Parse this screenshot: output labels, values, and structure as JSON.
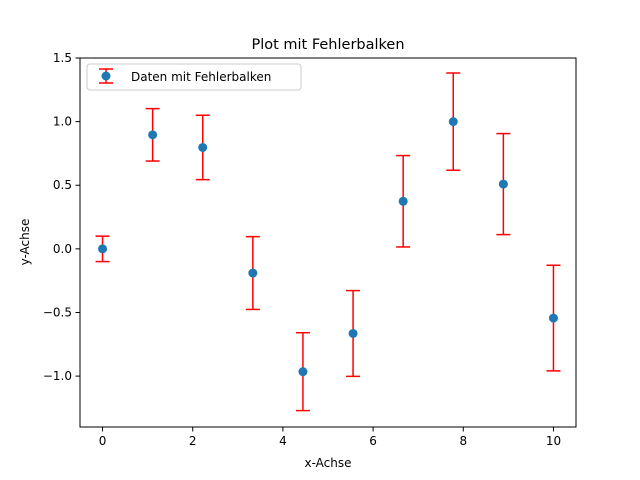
{
  "chart_data": {
    "type": "scatter",
    "title": "Plot mit Fehlerbalken",
    "xlabel": "x-Achse",
    "ylabel": "y-Achse",
    "xlim": [
      -0.5,
      10.5
    ],
    "ylim": [
      -1.4,
      1.5
    ],
    "xticks": [
      0,
      2,
      4,
      6,
      8,
      10
    ],
    "xtick_labels": [
      "0",
      "2",
      "4",
      "6",
      "8",
      "10"
    ],
    "yticks": [
      -1.0,
      -0.5,
      0.0,
      0.5,
      1.0,
      1.5
    ],
    "ytick_labels": [
      "−1.0",
      "−0.5",
      "0.0",
      "0.5",
      "1.0",
      "1.5"
    ],
    "grid": false,
    "legend_position": "top-left",
    "series": [
      {
        "name": "Daten mit Fehlerbalken",
        "x": [
          0,
          1.111,
          2.222,
          3.333,
          4.444,
          5.556,
          6.667,
          7.778,
          8.889,
          10
        ],
        "y": [
          0.0,
          0.896,
          0.797,
          -0.19,
          -0.965,
          -0.665,
          0.374,
          1.0,
          0.509,
          -0.544
        ],
        "yerr": [
          0.1,
          0.206,
          0.253,
          0.286,
          0.306,
          0.337,
          0.359,
          0.382,
          0.397,
          0.415
        ],
        "marker_color": "#1f77b4",
        "errorbar_color": "#ff0000"
      }
    ]
  }
}
